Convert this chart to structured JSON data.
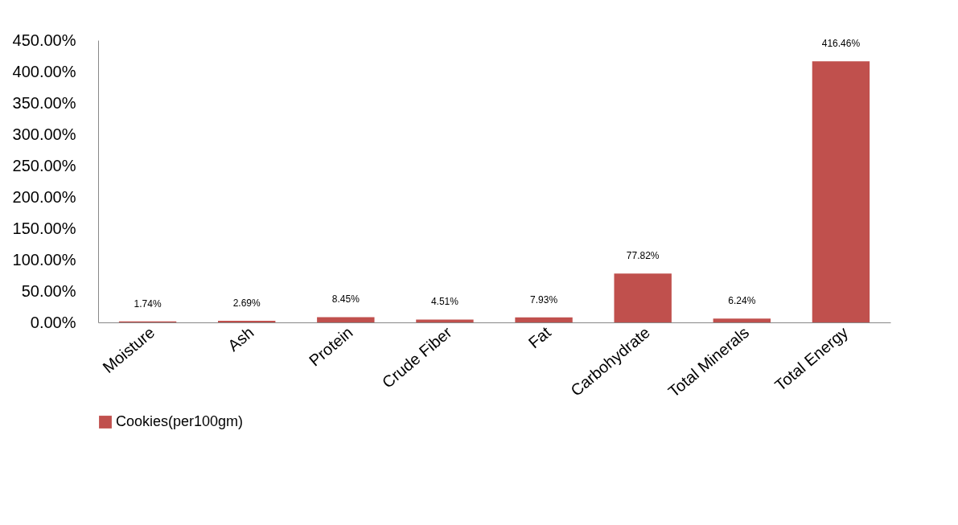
{
  "chart_data": {
    "type": "bar",
    "categories": [
      "Moisture",
      "Ash",
      "Protein",
      "Crude Fiber",
      "Fat",
      "Carbohydrate",
      "Total Minerals",
      "Total Energy"
    ],
    "series": [
      {
        "name": "Cookies(per100gm)",
        "color": "#c0504d",
        "values": [
          1.74,
          2.69,
          8.45,
          4.51,
          7.93,
          77.82,
          6.24,
          416.46
        ],
        "value_labels": [
          "1.74%",
          "2.69%",
          "8.45%",
          "4.51%",
          "7.93%",
          "77.82%",
          "6.24%",
          "416.46%"
        ]
      }
    ],
    "ylim": [
      0,
      450
    ],
    "yticks": [
      {
        "value": 0,
        "label": "0.00%"
      },
      {
        "value": 50,
        "label": "50.00%"
      },
      {
        "value": 100,
        "label": "100.00%"
      },
      {
        "value": 150,
        "label": "150.00%"
      },
      {
        "value": 200,
        "label": "200.00%"
      },
      {
        "value": 250,
        "label": "250.00%"
      },
      {
        "value": 300,
        "label": "300.00%"
      },
      {
        "value": 350,
        "label": "350.00%"
      },
      {
        "value": 400,
        "label": "400.00%"
      },
      {
        "value": 450,
        "label": "450.00%"
      }
    ],
    "grid": false,
    "legend": "bottom"
  }
}
